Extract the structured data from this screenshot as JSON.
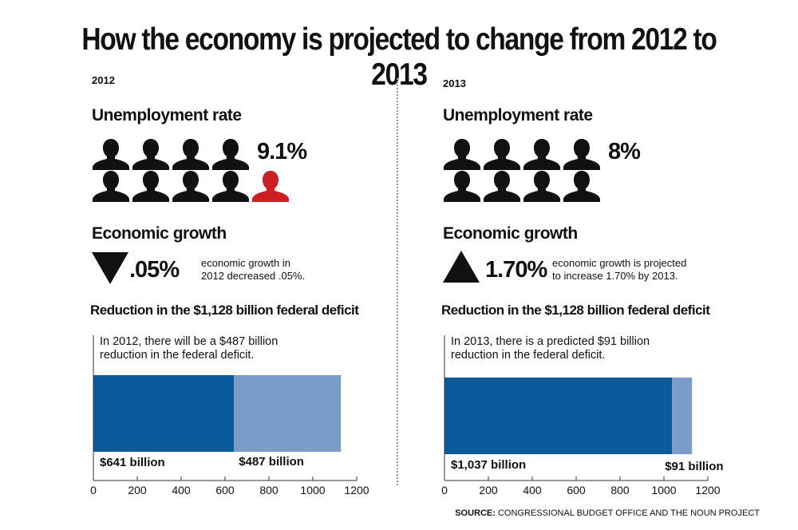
{
  "title": "How the economy is projected to change from 2012 to 2013",
  "colors": {
    "employed": "#111111",
    "unemployed": "#cc1f24",
    "remaining_deficit": "#0a5a9c",
    "reduction": "#7b9cc8"
  },
  "panels": [
    {
      "year": "2012",
      "unemployment_label": "Unemployment rate",
      "unemployment_value": "9.1%",
      "icons_total": 9,
      "icons_highlighted": 1,
      "growth_label": "Economic growth",
      "growth_direction": "down",
      "growth_value": ".05%",
      "growth_note_1": "economic growth in",
      "growth_note_2": "2012 decreased .05%.",
      "deficit_label": "Reduction in the $1,128 billion federal deficit",
      "annotation_1": "In 2012, there will be a $487 billion",
      "annotation_2": "reduction in the federal deficit.",
      "bar_label_1": "$641 billion",
      "bar_label_2": "$487 billion"
    },
    {
      "year": "2013",
      "unemployment_label": "Unemployment rate",
      "unemployment_value": "8%",
      "icons_total": 8,
      "icons_highlighted": 0,
      "growth_label": "Economic growth",
      "growth_direction": "up",
      "growth_value": "1.70%",
      "growth_note_1": "economic growth is projected",
      "growth_note_2": "to increase 1.70% by 2013.",
      "deficit_label": "Reduction in the $1,128 billion federal deficit",
      "annotation_1": "In 2013, there is a predicted $91 billion",
      "annotation_2": "reduction in the federal deficit.",
      "bar_label_1": "$1,037 billion",
      "bar_label_2": "$91 billion"
    }
  ],
  "chart_data": [
    {
      "type": "bar",
      "orientation": "horizontal",
      "stacked": true,
      "series": [
        {
          "values": [
            641
          ]
        },
        {
          "values": [
            487
          ]
        }
      ],
      "xlim": [
        0,
        1200
      ],
      "xticks": [
        "0",
        "200",
        "400",
        "600",
        "800",
        "1000",
        "1200"
      ]
    },
    {
      "type": "bar",
      "orientation": "horizontal",
      "stacked": true,
      "series": [
        {
          "values": [
            1037
          ]
        },
        {
          "values": [
            91
          ]
        }
      ],
      "xlim": [
        0,
        1200
      ],
      "xticks": [
        "0",
        "200",
        "400",
        "600",
        "800",
        "1000",
        "1200"
      ]
    }
  ],
  "source_label": "SOURCE:",
  "source_text": " CONGRESSIONAL BUDGET OFFICE AND THE NOUN PROJECT"
}
